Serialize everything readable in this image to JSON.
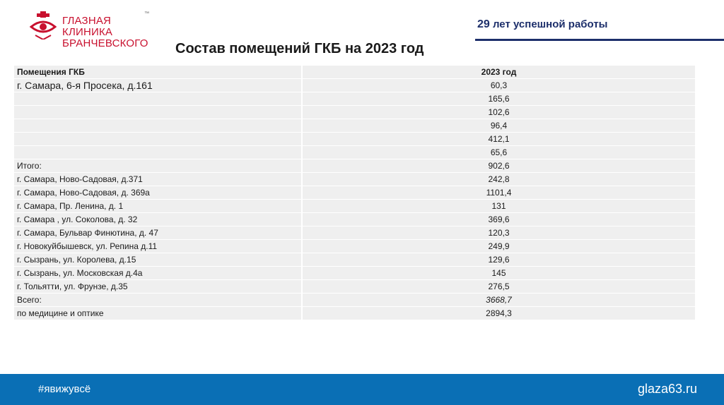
{
  "header": {
    "logo_line1": "ГЛАЗНАЯ КЛИНИКА",
    "logo_line2": "БРАНЧЕВСКОГО",
    "logo_tm": "™",
    "tagline_number": "29",
    "tagline_text": " лет успешной работы"
  },
  "title": "Состав помещений ГКБ на 2023 год",
  "table": {
    "col1_header": "Помещения ГКБ",
    "col2_header": "2023 год",
    "rows": [
      {
        "name": "г. Самара, 6-я Просека, д.161",
        "value": "60,3"
      },
      {
        "name": "",
        "value": "165,6"
      },
      {
        "name": "",
        "value": "102,6"
      },
      {
        "name": "",
        "value": "96,4"
      },
      {
        "name": "",
        "value": "412,1"
      },
      {
        "name": "",
        "value": "65,6"
      },
      {
        "name": "Итого:",
        "value": "902,6"
      },
      {
        "name": "г. Самара, Ново-Садовая, д.371",
        "value": "242,8"
      },
      {
        "name": "г. Самара, Ново-Садовая, д. 369а",
        "value": "1101,4"
      },
      {
        "name": "г. Самара, Пр. Ленина, д. 1",
        "value": "131"
      },
      {
        "name": "г. Самара , ул. Соколова, д. 32",
        "value": "369,6"
      },
      {
        "name": "г. Самара, Бульвар  Финютина, д. 47",
        "value": "120,3"
      },
      {
        "name": "г. Новокуйбышевск, ул. Репина д.11",
        "value": "249,9"
      },
      {
        "name": "г. Сызрань, ул. Королева, д.15",
        "value": "129,6"
      },
      {
        "name": "г. Сызрань, ул. Московская д.4а",
        "value": "145"
      },
      {
        "name": "г. Тольятти, ул. Фрунзе, д.35",
        "value": "276,5"
      },
      {
        "name": "Всего:",
        "value": "3668,7"
      },
      {
        "name": "по медицине и оптике",
        "value": "2894,3"
      }
    ]
  },
  "footer": {
    "hashtag": "#явижувсё",
    "site": "glaza63.ru"
  },
  "colors": {
    "brand_red": "#c8102e",
    "brand_blue": "#1d2f6b",
    "footer_blue": "#0a6fb5",
    "row_bg": "#efefef"
  }
}
